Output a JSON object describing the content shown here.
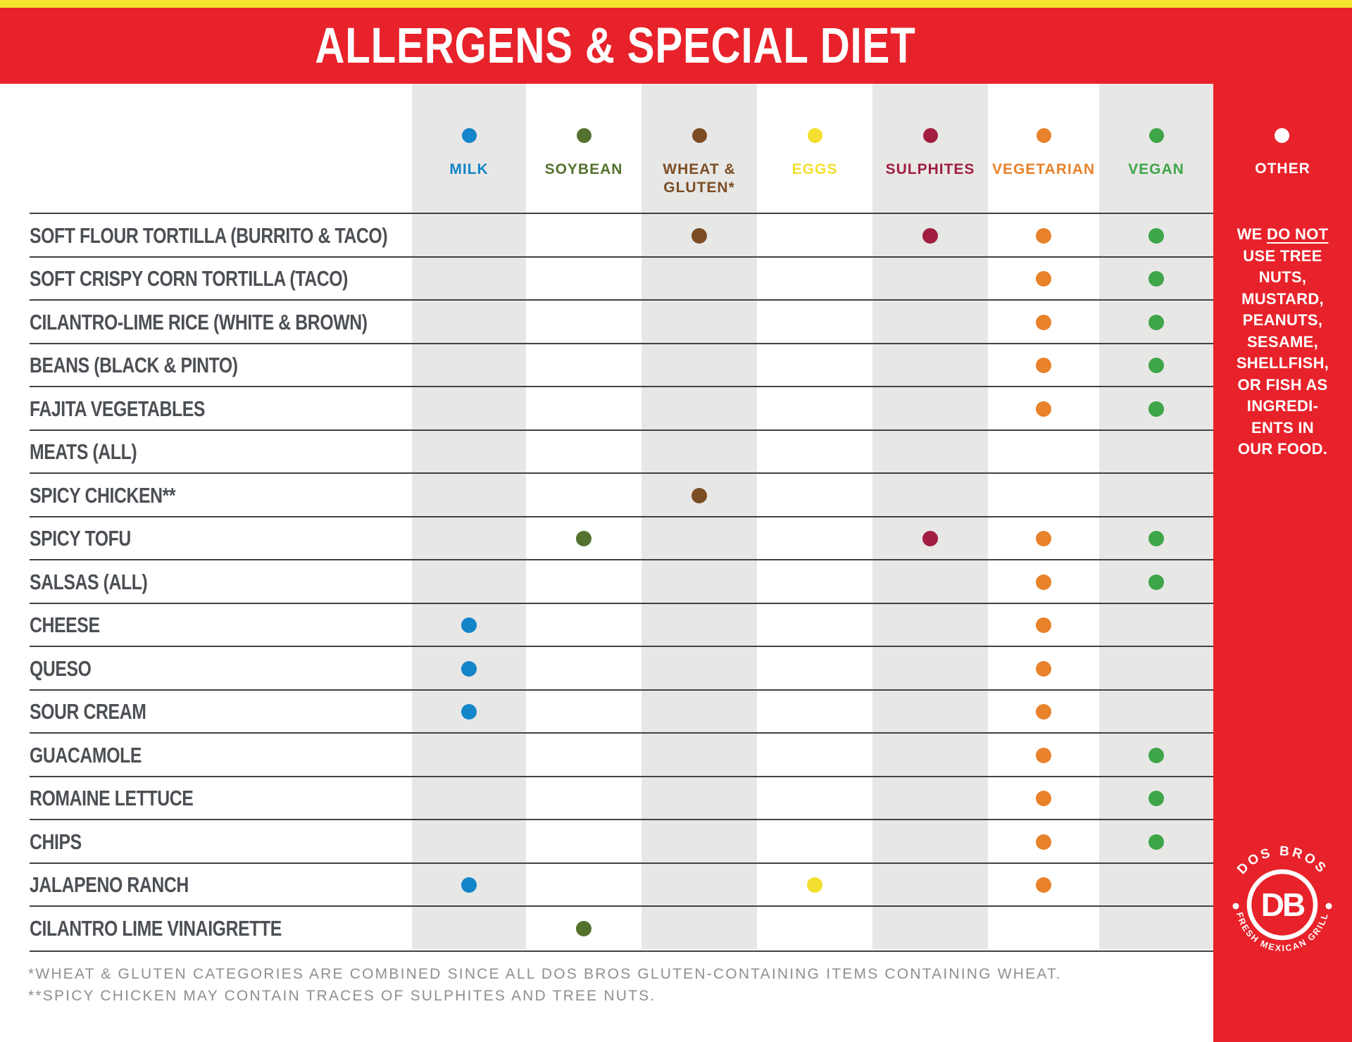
{
  "banner": {
    "title": "ALLERGENS & SPECIAL DIET"
  },
  "colors": {
    "brand_red": "#E8222A",
    "top_strip_yellow": "#F3E52D",
    "stripe_gray": "#E7E7E6",
    "row_line": "#424242",
    "label_gray": "#4C5055",
    "footnote_gray": "#8F8F8F"
  },
  "columns": [
    {
      "key": "milk",
      "label": "MILK",
      "color": "#1385C8"
    },
    {
      "key": "soybean",
      "label": "SOYBEAN",
      "color": "#54722E"
    },
    {
      "key": "wheat",
      "label": "WHEAT &\nGLUTEN*",
      "color": "#7C4D24"
    },
    {
      "key": "eggs",
      "label": "EGGS",
      "color": "#F3DF2F"
    },
    {
      "key": "sulphites",
      "label": "SULPHITES",
      "color": "#A11E41"
    },
    {
      "key": "vegetarian",
      "label": "VEGETARIAN",
      "color": "#E8822B"
    },
    {
      "key": "vegan",
      "label": "VEGAN",
      "color": "#3EA549"
    }
  ],
  "table": {
    "rows": [
      {
        "label": "SOFT FLOUR TORTILLA (BURRITO & TACO)",
        "marks": [
          "wheat",
          "sulphites",
          "vegetarian",
          "vegan"
        ]
      },
      {
        "label": "SOFT CRISPY CORN TORTILLA (TACO)",
        "marks": [
          "vegetarian",
          "vegan"
        ]
      },
      {
        "label": "CILANTRO-LIME RICE (WHITE & BROWN)",
        "marks": [
          "vegetarian",
          "vegan"
        ]
      },
      {
        "label": "BEANS (BLACK & PINTO)",
        "marks": [
          "vegetarian",
          "vegan"
        ]
      },
      {
        "label": "FAJITA VEGETABLES",
        "marks": [
          "vegetarian",
          "vegan"
        ]
      },
      {
        "label": "MEATS (ALL)",
        "marks": []
      },
      {
        "label": "SPICY CHICKEN**",
        "marks": [
          "wheat"
        ]
      },
      {
        "label": "SPICY TOFU",
        "marks": [
          "soybean",
          "sulphites",
          "vegetarian",
          "vegan"
        ]
      },
      {
        "label": "SALSAS (ALL)",
        "marks": [
          "vegetarian",
          "vegan"
        ]
      },
      {
        "label": "CHEESE",
        "marks": [
          "milk",
          "vegetarian"
        ]
      },
      {
        "label": "QUESO",
        "marks": [
          "milk",
          "vegetarian"
        ]
      },
      {
        "label": "SOUR CREAM",
        "marks": [
          "milk",
          "vegetarian"
        ]
      },
      {
        "label": "GUACAMOLE",
        "marks": [
          "vegetarian",
          "vegan"
        ]
      },
      {
        "label": "ROMAINE LETTUCE",
        "marks": [
          "vegetarian",
          "vegan"
        ]
      },
      {
        "label": "CHIPS",
        "marks": [
          "vegetarian",
          "vegan"
        ]
      },
      {
        "label": "JALAPENO RANCH",
        "marks": [
          "milk",
          "eggs",
          "vegetarian"
        ]
      },
      {
        "label": "CILANTRO LIME VINAIGRETTE",
        "marks": [
          "soybean"
        ]
      }
    ]
  },
  "sidebar": {
    "other_label": "OTHER",
    "note": {
      "line1_pre": "WE ",
      "line1_underlined": "DO NOT",
      "lines": [
        "USE TREE",
        "NUTS,",
        "MUSTARD,",
        "PEANUTS,",
        "SESAME,",
        "SHELLFISH,",
        "OR FISH AS",
        "INGREDI-",
        "ENTS IN",
        "OUR FOOD."
      ]
    }
  },
  "footnotes": [
    "*WHEAT & GLUTEN CATEGORIES ARE COMBINED SINCE ALL DOS BROS GLUTEN-CONTAINING ITEMS CONTAINING WHEAT.",
    "**SPICY CHICKEN MAY CONTAIN TRACES OF SULPHITES AND TREE NUTS."
  ],
  "logo": {
    "arc_top": "DOS BROS",
    "monogram": "DB",
    "arc_bottom": "FRESH MEXICAN GRILL"
  }
}
